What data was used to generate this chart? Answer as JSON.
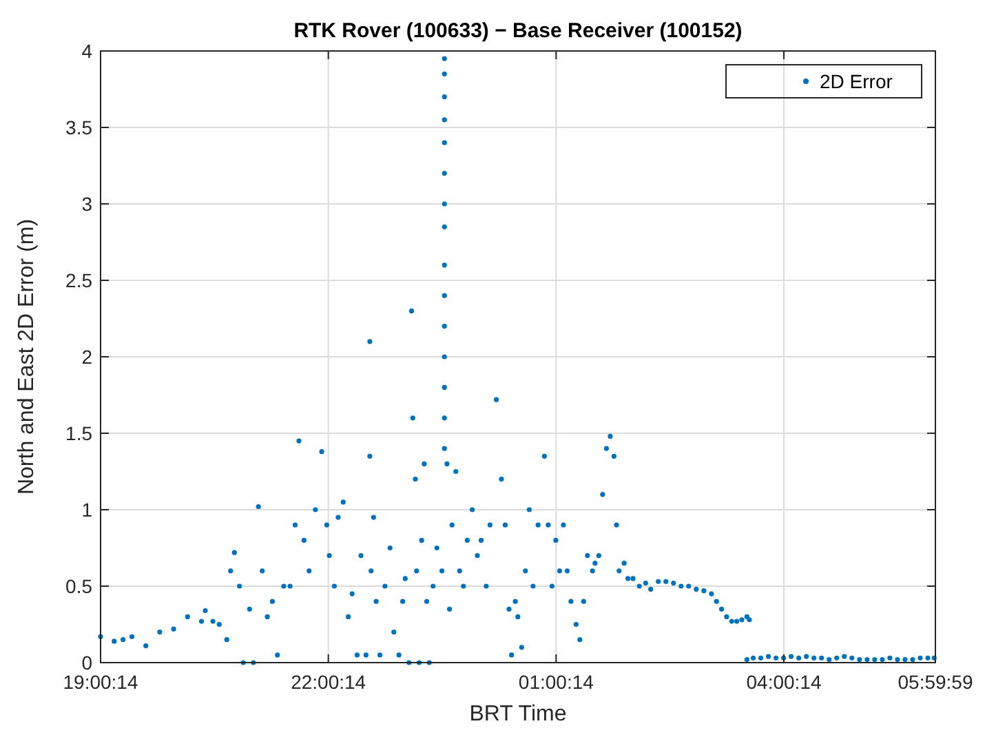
{
  "chart_data": {
    "type": "scatter",
    "title": "RTK Rover (100633) − Base Receiver (100152)",
    "xlabel": "BRT Time",
    "ylabel": "North and East 2D Error (m)",
    "xlim": [
      "2000-01-01T19:00:14",
      "2000-01-02T05:59:59"
    ],
    "xticks": [
      {
        "value": "2000-01-01T19:00:14",
        "label": "19:00:14"
      },
      {
        "value": "2000-01-01T22:00:14",
        "label": "22:00:14"
      },
      {
        "value": "2000-01-02T01:00:14",
        "label": "01:00:14"
      },
      {
        "value": "2000-01-02T04:00:14",
        "label": "04:00:14"
      },
      {
        "value": "2000-01-02T05:59:59",
        "label": "05:59:59"
      }
    ],
    "ylim": [
      0,
      4
    ],
    "yticks": [
      0,
      0.5,
      1,
      1.5,
      2,
      2.5,
      3,
      3.5,
      4
    ],
    "grid": true,
    "legend": "top right",
    "marker": "circle",
    "series": [
      {
        "name": "2D Error",
        "color": "#0072bd",
        "x": [
          "2000-01-01T19:00:14",
          "2000-01-01T19:11",
          "2000-01-01T19:18",
          "2000-01-01T19:25",
          "2000-01-01T19:36",
          "2000-01-01T19:47",
          "2000-01-01T19:58",
          "2000-01-01T20:09",
          "2000-01-01T20:20",
          "2000-01-01T20:23",
          "2000-01-01T20:29",
          "2000-01-01T20:34",
          "2000-01-01T20:40",
          "2000-01-01T20:43",
          "2000-01-01T20:46",
          "2000-01-01T20:50",
          "2000-01-01T20:53",
          "2000-01-01T20:58",
          "2000-01-01T21:01",
          "2000-01-01T21:05",
          "2000-01-01T21:08",
          "2000-01-01T21:12",
          "2000-01-01T21:16",
          "2000-01-01T21:20",
          "2000-01-01T21:25",
          "2000-01-01T21:30",
          "2000-01-01T21:34",
          "2000-01-01T21:37",
          "2000-01-01T21:41",
          "2000-01-01T21:45",
          "2000-01-01T21:50",
          "2000-01-01T21:55",
          "2000-01-01T21:59",
          "2000-01-01T22:01",
          "2000-01-01T22:05",
          "2000-01-01T22:08",
          "2000-01-01T22:12",
          "2000-01-01T22:16",
          "2000-01-01T22:19",
          "2000-01-01T22:23",
          "2000-01-01T22:26",
          "2000-01-01T22:30",
          "2000-01-01T22:33",
          "2000-01-01T22:33",
          "2000-01-01T22:34",
          "2000-01-01T22:36",
          "2000-01-01T22:38",
          "2000-01-01T22:41",
          "2000-01-01T22:45",
          "2000-01-01T22:49",
          "2000-01-01T22:52",
          "2000-01-01T22:56",
          "2000-01-01T22:59",
          "2000-01-01T23:01",
          "2000-01-01T23:04",
          "2000-01-01T23:06",
          "2000-01-01T23:07",
          "2000-01-01T23:09",
          "2000-01-01T23:10",
          "2000-01-01T23:12",
          "2000-01-01T23:14",
          "2000-01-01T23:16",
          "2000-01-01T23:18",
          "2000-01-01T23:20",
          "2000-01-01T23:23",
          "2000-01-01T23:26",
          "2000-01-01T23:30",
          "2000-01-01T23:32",
          "2000-01-01T23:32",
          "2000-01-01T23:32",
          "2000-01-01T23:32",
          "2000-01-01T23:32",
          "2000-01-01T23:32",
          "2000-01-01T23:32",
          "2000-01-01T23:32",
          "2000-01-01T23:32",
          "2000-01-01T23:32",
          "2000-01-01T23:32",
          "2000-01-01T23:32",
          "2000-01-01T23:32",
          "2000-01-01T23:32",
          "2000-01-01T23:32",
          "2000-01-01T23:34",
          "2000-01-01T23:36",
          "2000-01-01T23:38",
          "2000-01-01T23:41",
          "2000-01-01T23:44",
          "2000-01-01T23:47",
          "2000-01-01T23:50",
          "2000-01-01T23:54",
          "2000-01-01T23:58",
          "2000-01-02T00:01",
          "2000-01-02T00:05",
          "2000-01-02T00:08",
          "2000-01-02T00:13",
          "2000-01-02T00:17",
          "2000-01-02T00:20",
          "2000-01-02T00:23",
          "2000-01-02T00:25",
          "2000-01-02T00:28",
          "2000-01-02T00:30",
          "2000-01-02T00:33",
          "2000-01-02T00:36",
          "2000-01-02T00:39",
          "2000-01-02T00:42",
          "2000-01-02T00:46",
          "2000-01-02T00:51",
          "2000-01-02T00:54",
          "2000-01-02T00:57",
          "2000-01-02T01:00",
          "2000-01-02T01:03",
          "2000-01-02T01:06",
          "2000-01-02T01:09",
          "2000-01-02T01:12",
          "2000-01-02T01:16",
          "2000-01-02T01:19",
          "2000-01-02T01:22",
          "2000-01-02T01:25",
          "2000-01-02T01:29",
          "2000-01-02T01:31",
          "2000-01-02T01:34",
          "2000-01-02T01:37",
          "2000-01-02T01:40",
          "2000-01-02T01:43",
          "2000-01-02T01:46",
          "2000-01-02T01:48",
          "2000-01-02T01:50",
          "2000-01-02T01:54",
          "2000-01-02T01:57",
          "2000-01-02T02:01",
          "2000-01-02T02:06",
          "2000-01-02T02:11",
          "2000-01-02T02:15",
          "2000-01-02T02:21",
          "2000-01-02T02:27",
          "2000-01-02T02:33",
          "2000-01-02T02:39",
          "2000-01-02T02:45",
          "2000-01-02T02:51",
          "2000-01-02T02:57",
          "2000-01-02T03:03",
          "2000-01-02T03:07",
          "2000-01-02T03:11",
          "2000-01-02T03:15",
          "2000-01-02T03:19",
          "2000-01-02T03:23",
          "2000-01-02T03:27",
          "2000-01-02T03:31",
          "2000-01-02T03:31",
          "2000-01-02T03:33",
          "2000-01-02T03:36",
          "2000-01-02T03:42",
          "2000-01-02T03:48",
          "2000-01-02T03:54",
          "2000-01-02T04:00",
          "2000-01-02T04:06",
          "2000-01-02T04:12",
          "2000-01-02T04:18",
          "2000-01-02T04:24",
          "2000-01-02T04:30",
          "2000-01-02T04:36",
          "2000-01-02T04:42",
          "2000-01-02T04:48",
          "2000-01-02T04:54",
          "2000-01-02T05:00",
          "2000-01-02T05:06",
          "2000-01-02T05:12",
          "2000-01-02T05:18",
          "2000-01-02T05:24",
          "2000-01-02T05:30",
          "2000-01-02T05:36",
          "2000-01-02T05:42",
          "2000-01-02T05:48",
          "2000-01-02T05:54",
          "2000-01-02T05:59"
        ],
        "values": [
          0.17,
          0.14,
          0.15,
          0.17,
          0.11,
          0.2,
          0.22,
          0.3,
          0.27,
          0.34,
          0.27,
          0.25,
          0.15,
          0.6,
          0.72,
          0.5,
          0.0,
          0.35,
          0.0,
          1.02,
          0.6,
          0.3,
          0.4,
          0.05,
          0.5,
          0.5,
          0.9,
          1.45,
          0.8,
          0.6,
          1.0,
          1.38,
          0.9,
          0.7,
          0.5,
          0.95,
          1.05,
          0.3,
          0.45,
          0.05,
          0.7,
          0.05,
          2.1,
          1.35,
          0.6,
          0.95,
          0.4,
          0.05,
          0.5,
          0.75,
          0.2,
          0.05,
          0.4,
          0.55,
          0.0,
          2.3,
          1.6,
          1.2,
          0.6,
          0.0,
          0.8,
          1.3,
          0.4,
          0.0,
          0.5,
          0.75,
          0.6,
          3.95,
          3.85,
          3.7,
          3.55,
          3.4,
          3.2,
          3.0,
          2.85,
          2.6,
          2.4,
          2.2,
          2.0,
          1.8,
          1.6,
          1.4,
          1.3,
          0.35,
          0.9,
          1.25,
          0.6,
          0.5,
          0.8,
          1.0,
          0.7,
          0.8,
          0.5,
          0.9,
          1.72,
          1.2,
          0.9,
          0.35,
          0.05,
          0.4,
          0.3,
          0.1,
          0.6,
          1.0,
          0.5,
          0.9,
          1.35,
          0.9,
          0.5,
          0.8,
          0.6,
          0.9,
          0.6,
          0.4,
          0.25,
          0.15,
          0.4,
          0.7,
          0.6,
          0.65,
          0.7,
          1.1,
          1.4,
          1.48,
          1.35,
          0.9,
          0.6,
          0.65,
          0.55,
          0.55,
          0.5,
          0.52,
          0.48,
          0.53,
          0.53,
          0.52,
          0.5,
          0.5,
          0.48,
          0.47,
          0.45,
          0.4,
          0.35,
          0.3,
          0.27,
          0.27,
          0.28,
          0.02,
          0.3,
          0.28,
          0.03,
          0.03,
          0.04,
          0.03,
          0.03,
          0.04,
          0.03,
          0.04,
          0.03,
          0.03,
          0.02,
          0.03,
          0.04,
          0.03,
          0.02,
          0.02,
          0.02,
          0.02,
          0.03,
          0.02,
          0.02,
          0.02,
          0.03,
          0.03,
          0.03
        ]
      }
    ]
  }
}
